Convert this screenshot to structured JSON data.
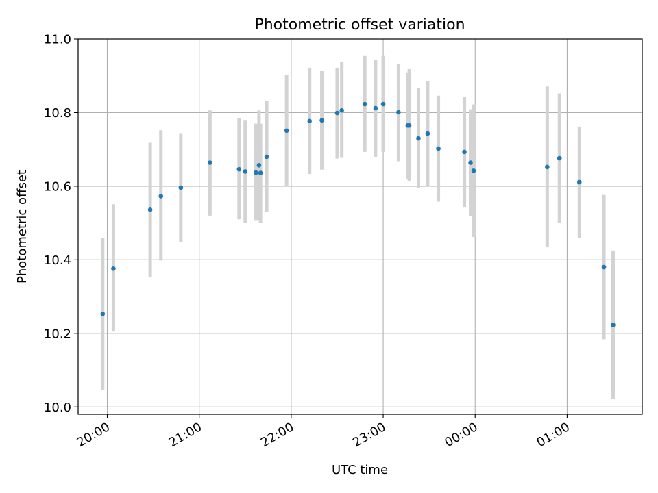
{
  "chart_data": {
    "type": "scatter",
    "title": "Photometric offset variation",
    "xlabel": "UTC time",
    "ylabel": "Photometric offset",
    "xlim": [
      "19:41",
      "01:49"
    ],
    "ylim": [
      9.98,
      11.0
    ],
    "xticks": [
      "20:00",
      "21:00",
      "22:00",
      "23:00",
      "00:00",
      "01:00"
    ],
    "yticks": [
      "10.0",
      "10.2",
      "10.4",
      "10.6",
      "10.8",
      "11.0"
    ],
    "grid": true,
    "colors": {
      "points": "#1f77b4",
      "errorbars": "#d3d3d3",
      "grid": "#b0b0b0"
    },
    "points": [
      {
        "x": "19:57",
        "y": 10.253,
        "ylow": 10.046,
        "yhigh": 10.46
      },
      {
        "x": "20:04",
        "y": 10.376,
        "ylow": 10.205,
        "yhigh": 10.551
      },
      {
        "x": "20:28",
        "y": 10.536,
        "ylow": 10.354,
        "yhigh": 10.718
      },
      {
        "x": "20:35",
        "y": 10.573,
        "ylow": 10.398,
        "yhigh": 10.752
      },
      {
        "x": "20:48",
        "y": 10.596,
        "ylow": 10.448,
        "yhigh": 10.744
      },
      {
        "x": "21:07",
        "y": 10.664,
        "ylow": 10.52,
        "yhigh": 10.806
      },
      {
        "x": "21:26",
        "y": 10.646,
        "ylow": 10.51,
        "yhigh": 10.784
      },
      {
        "x": "21:30",
        "y": 10.64,
        "ylow": 10.5,
        "yhigh": 10.78
      },
      {
        "x": "21:37",
        "y": 10.637,
        "ylow": 10.506,
        "yhigh": 10.77
      },
      {
        "x": "21:39",
        "y": 10.657,
        "ylow": 10.506,
        "yhigh": 10.806
      },
      {
        "x": "21:40",
        "y": 10.636,
        "ylow": 10.5,
        "yhigh": 10.77
      },
      {
        "x": "21:44",
        "y": 10.68,
        "ylow": 10.531,
        "yhigh": 10.831
      },
      {
        "x": "21:57",
        "y": 10.751,
        "ylow": 10.6,
        "yhigh": 10.902
      },
      {
        "x": "22:12",
        "y": 10.777,
        "ylow": 10.633,
        "yhigh": 10.922
      },
      {
        "x": "22:20",
        "y": 10.779,
        "ylow": 10.645,
        "yhigh": 10.913
      },
      {
        "x": "22:30",
        "y": 10.799,
        "ylow": 10.675,
        "yhigh": 10.922
      },
      {
        "x": "22:33",
        "y": 10.806,
        "ylow": 10.677,
        "yhigh": 10.937
      },
      {
        "x": "22:48",
        "y": 10.823,
        "ylow": 10.693,
        "yhigh": 10.954
      },
      {
        "x": "22:55",
        "y": 10.812,
        "ylow": 10.68,
        "yhigh": 10.944
      },
      {
        "x": "23:00",
        "y": 10.823,
        "ylow": 10.693,
        "yhigh": 10.954
      },
      {
        "x": "23:10",
        "y": 10.801,
        "ylow": 10.668,
        "yhigh": 10.933
      },
      {
        "x": "23:16",
        "y": 10.765,
        "ylow": 10.62,
        "yhigh": 10.909
      },
      {
        "x": "23:17",
        "y": 10.765,
        "ylow": 10.613,
        "yhigh": 10.918
      },
      {
        "x": "23:23",
        "y": 10.73,
        "ylow": 10.595,
        "yhigh": 10.866
      },
      {
        "x": "23:29",
        "y": 10.743,
        "ylow": 10.6,
        "yhigh": 10.886
      },
      {
        "x": "23:36",
        "y": 10.702,
        "ylow": 10.558,
        "yhigh": 10.846
      },
      {
        "x": "23:53",
        "y": 10.693,
        "ylow": 10.542,
        "yhigh": 10.842
      },
      {
        "x": "23:57",
        "y": 10.664,
        "ylow": 10.518,
        "yhigh": 10.809
      },
      {
        "x": "23:59",
        "y": 10.642,
        "ylow": 10.462,
        "yhigh": 10.822
      },
      {
        "x": "00:47",
        "y": 10.652,
        "ylow": 10.434,
        "yhigh": 10.871
      },
      {
        "x": "00:55",
        "y": 10.676,
        "ylow": 10.5,
        "yhigh": 10.852
      },
      {
        "x": "01:08",
        "y": 10.611,
        "ylow": 10.46,
        "yhigh": 10.762
      },
      {
        "x": "01:24",
        "y": 10.38,
        "ylow": 10.184,
        "yhigh": 10.576
      },
      {
        "x": "01:30",
        "y": 10.223,
        "ylow": 10.022,
        "yhigh": 10.425
      }
    ]
  }
}
